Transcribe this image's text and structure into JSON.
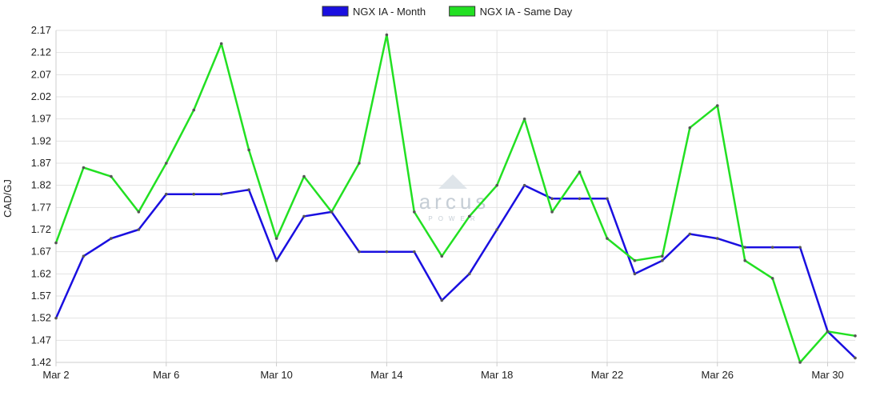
{
  "chart_data": {
    "type": "line",
    "ylabel": "CAD/GJ",
    "ylim": [
      1.42,
      2.17
    ],
    "yticks": [
      "1.42",
      "1.47",
      "1.52",
      "1.57",
      "1.62",
      "1.67",
      "1.72",
      "1.77",
      "1.82",
      "1.87",
      "1.92",
      "1.97",
      "2.02",
      "2.07",
      "2.12",
      "2.17"
    ],
    "xlim_day": [
      2,
      31
    ],
    "xticks": [
      {
        "day": 2,
        "label": "Mar 2"
      },
      {
        "day": 6,
        "label": "Mar 6"
      },
      {
        "day": 10,
        "label": "Mar 10"
      },
      {
        "day": 14,
        "label": "Mar 14"
      },
      {
        "day": 18,
        "label": "Mar 18"
      },
      {
        "day": 22,
        "label": "Mar 22"
      },
      {
        "day": 26,
        "label": "Mar 26"
      },
      {
        "day": 30,
        "label": "Mar 30"
      }
    ],
    "grid": true,
    "legend_position": "top-center",
    "x": [
      2,
      3,
      4,
      5,
      6,
      7,
      8,
      9,
      10,
      11,
      12,
      13,
      14,
      15,
      16,
      17,
      18,
      19,
      20,
      21,
      22,
      23,
      24,
      25,
      26,
      27,
      28,
      29,
      30,
      31
    ],
    "series": [
      {
        "name": "NGX IA - Month",
        "color": "#1a0fe0",
        "values": [
          1.52,
          1.66,
          1.7,
          1.72,
          1.8,
          1.8,
          1.8,
          1.81,
          1.65,
          1.75,
          1.76,
          1.67,
          1.67,
          1.67,
          1.56,
          1.62,
          1.72,
          1.82,
          1.79,
          1.79,
          1.79,
          1.62,
          1.65,
          1.71,
          1.7,
          1.68,
          1.68,
          1.68,
          1.49,
          1.43
        ]
      },
      {
        "name": "NGX IA - Same Day",
        "color": "#22e022",
        "values": [
          1.69,
          1.86,
          1.84,
          1.76,
          1.87,
          1.99,
          2.14,
          1.9,
          1.7,
          1.84,
          1.76,
          1.87,
          2.16,
          1.76,
          1.66,
          1.75,
          1.82,
          1.97,
          1.76,
          1.85,
          1.7,
          1.65,
          1.66,
          1.95,
          2.0,
          1.65,
          1.61,
          1.42,
          1.49,
          1.48
        ]
      }
    ]
  },
  "watermark": {
    "text": "arcus",
    "sub": "POWER"
  }
}
